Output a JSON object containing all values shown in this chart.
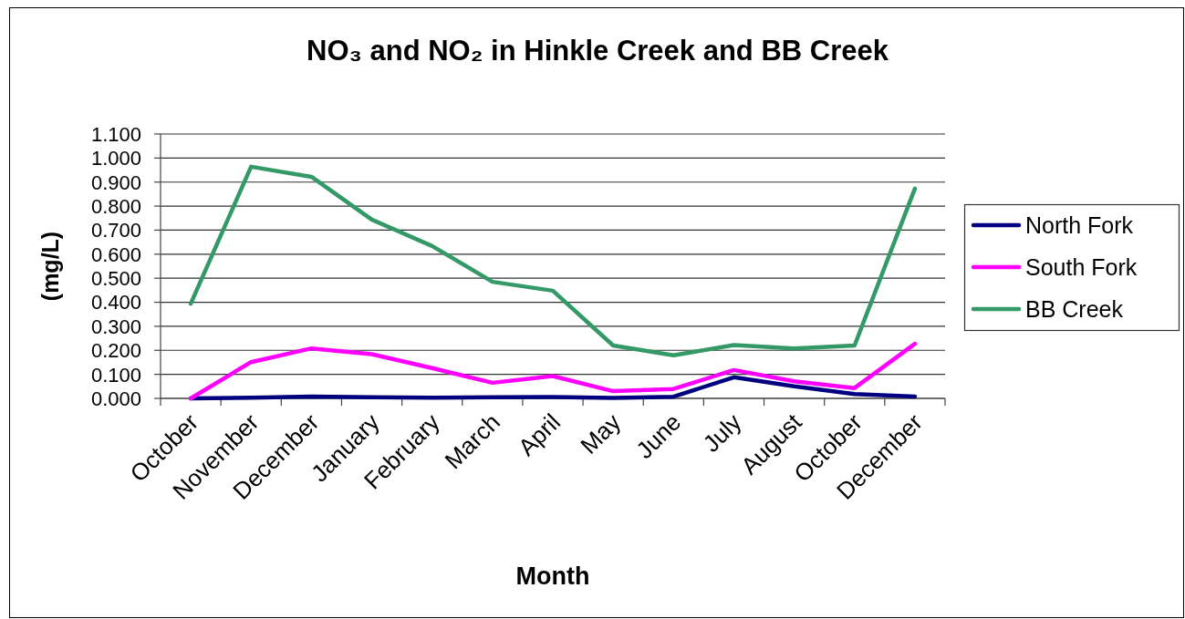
{
  "chart_data": {
    "type": "line",
    "title": "NO₃ and NO₂ in Hinkle Creek and BB Creek",
    "xlabel": "Month",
    "ylabel": "(mg/L)",
    "categories": [
      "October",
      "November",
      "December",
      "January",
      "February",
      "March",
      "April",
      "May",
      "June",
      "July",
      "August",
      "October",
      "December"
    ],
    "series": [
      {
        "name": "North Fork",
        "color": "#000080",
        "values": [
          0,
          0.003,
          0.008,
          0.005,
          0.003,
          0.005,
          0.006,
          0.002,
          0.007,
          0.088,
          0.05,
          0.018,
          0.008
        ]
      },
      {
        "name": "South Fork",
        "color": "#ff00ff",
        "values": [
          0,
          0.151,
          0.208,
          0.184,
          0.126,
          0.065,
          0.093,
          0.03,
          0.039,
          0.118,
          0.071,
          0.043,
          0.227
        ]
      },
      {
        "name": "BB Creek",
        "color": "#339966",
        "values": [
          0.394,
          0.964,
          0.922,
          0.744,
          0.634,
          0.485,
          0.448,
          0.22,
          0.179,
          0.222,
          0.208,
          0.22,
          0.873
        ]
      }
    ],
    "ylim": [
      0,
      1.1
    ],
    "yticks": [
      {
        "value": 0,
        "label": "0.000"
      },
      {
        "value": 0.1,
        "label": "0.100"
      },
      {
        "value": 0.2,
        "label": "0.200"
      },
      {
        "value": 0.3,
        "label": "0.300"
      },
      {
        "value": 0.4,
        "label": "0.400"
      },
      {
        "value": 0.5,
        "label": "0.500"
      },
      {
        "value": 0.6,
        "label": "0.600"
      },
      {
        "value": 0.7,
        "label": "0.700"
      },
      {
        "value": 0.8,
        "label": "0.800"
      },
      {
        "value": 0.9,
        "label": "0.900"
      },
      {
        "value": 1.0,
        "label": "1.000"
      },
      {
        "value": 1.1,
        "label": "1.100"
      }
    ],
    "grid": "y",
    "legend": "right"
  }
}
